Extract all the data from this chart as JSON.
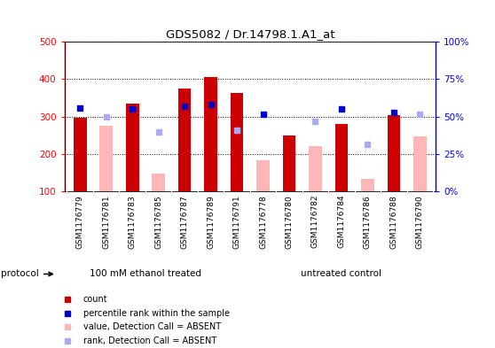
{
  "title": "GDS5082 / Dr.14798.1.A1_at",
  "samples": [
    "GSM1176779",
    "GSM1176781",
    "GSM1176783",
    "GSM1176785",
    "GSM1176787",
    "GSM1176789",
    "GSM1176791",
    "GSM1176778",
    "GSM1176780",
    "GSM1176782",
    "GSM1176784",
    "GSM1176786",
    "GSM1176788",
    "GSM1176790"
  ],
  "count_values": [
    297,
    null,
    335,
    null,
    375,
    405,
    362,
    null,
    250,
    null,
    280,
    null,
    305,
    null
  ],
  "count_absent_values": [
    null,
    275,
    null,
    148,
    null,
    null,
    null,
    183,
    null,
    220,
    null,
    133,
    null,
    248
  ],
  "rank_values": [
    322,
    null,
    320,
    null,
    328,
    332,
    null,
    307,
    null,
    null,
    320,
    null,
    312,
    null
  ],
  "rank_absent_values": [
    null,
    298,
    null,
    258,
    null,
    null,
    263,
    null,
    null,
    287,
    null,
    225,
    null,
    307
  ],
  "ylim_left": [
    100,
    500
  ],
  "ylim_right": [
    0,
    100
  ],
  "yticks_left": [
    100,
    200,
    300,
    400,
    500
  ],
  "yticks_right": [
    0,
    25,
    50,
    75,
    100
  ],
  "group1_label": "100 mM ethanol treated",
  "group2_label": "untreated control",
  "group1_count": 7,
  "group2_count": 7,
  "bar_color_red": "#cc0000",
  "bar_color_pink": "#ffb6b6",
  "dot_color_blue": "#0000cc",
  "dot_color_lightblue": "#aaaaee",
  "group_color": "#55dd55",
  "tick_bg": "#cccccc",
  "plot_bg": "#ffffff"
}
